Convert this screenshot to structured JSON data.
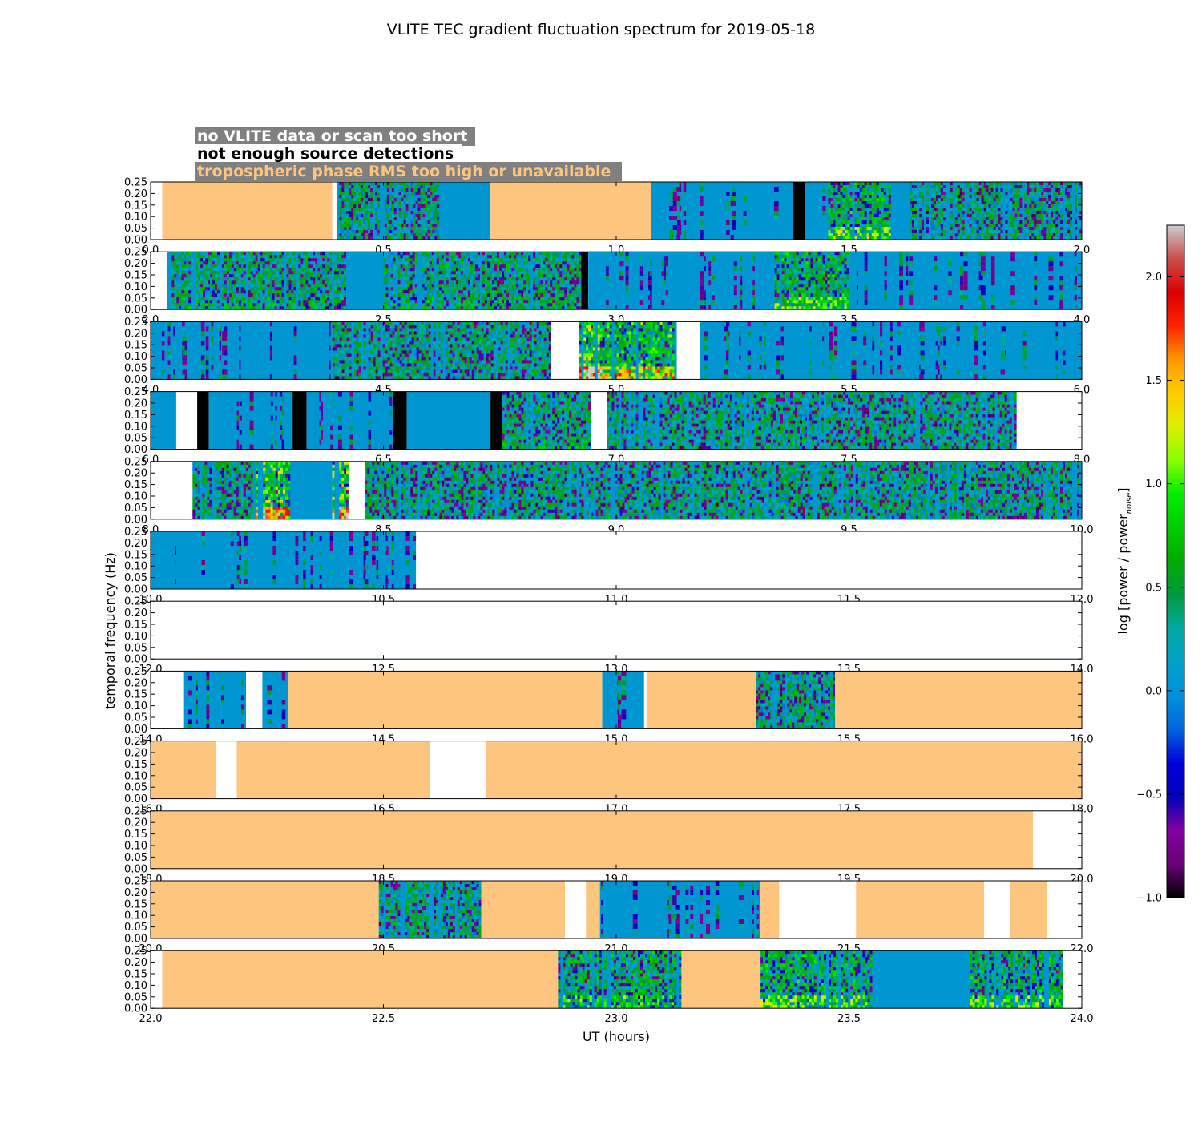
{
  "chart_data": {
    "type": "heatmap",
    "title": "VLITE TEC gradient fluctuation spectrum for 2019-05-18",
    "xlabel": "UT (hours)",
    "ylabel": "temporal frequency (Hz)",
    "ylim": [
      0,
      0.25
    ],
    "yticks": [
      "0.00",
      "0.05",
      "0.10",
      "0.15",
      "0.20",
      "0.25"
    ],
    "legend": {
      "position": "top-left",
      "entries": [
        {
          "label": "no VLITE data or scan too short",
          "color": "#ffffff"
        },
        {
          "label": "not enough source detections",
          "color": "#000000"
        },
        {
          "label": "tropospheric phase RMS too high or unavailable",
          "color": "#fec57f"
        }
      ]
    },
    "colorbar": {
      "label": "log [power / power",
      "label_sub": "noise",
      "label_end": "]",
      "min": -1.0,
      "max": 2.25,
      "ticks": [
        "2.0",
        "1.5",
        "1.0",
        "0.5",
        "0.0",
        "−0.5",
        "−1.0"
      ],
      "tick_values": [
        2.0,
        1.5,
        1.0,
        0.5,
        0.0,
        -0.5,
        -1.0
      ],
      "colormap": "nipy_spectral"
    },
    "colors": {
      "troposphere": "#fec57f",
      "no_detections": "#000000",
      "no_data": "#ffffff",
      "quiet": "#0096d2"
    },
    "panels": [
      {
        "xlim": [
          0.0,
          2.0
        ],
        "xticks": [
          "0.0",
          "0.5",
          "1.0",
          "1.5",
          "2.0"
        ],
        "segments": [
          {
            "start": 0.025,
            "end": 0.39,
            "kind": "troposphere"
          },
          {
            "start": 0.4,
            "end": 0.62,
            "kind": "spectrum",
            "activity": 0.35
          },
          {
            "start": 0.62,
            "end": 0.73,
            "kind": "quiet"
          },
          {
            "start": 0.73,
            "end": 1.075,
            "kind": "troposphere"
          },
          {
            "start": 1.075,
            "end": 1.38,
            "kind": "quiet-patchy"
          },
          {
            "start": 1.38,
            "end": 1.405,
            "kind": "no_detections"
          },
          {
            "start": 1.405,
            "end": 1.45,
            "kind": "quiet-patchy"
          },
          {
            "start": 1.45,
            "end": 1.59,
            "kind": "spectrum",
            "activity": 0.55
          },
          {
            "start": 1.59,
            "end": 1.63,
            "kind": "quiet"
          },
          {
            "start": 1.63,
            "end": 2.0,
            "kind": "spectrum",
            "activity": 0.35
          }
        ]
      },
      {
        "xlim": [
          2.0,
          4.0
        ],
        "xticks": [
          "2.0",
          "2.5",
          "3.0",
          "3.5",
          "4.0"
        ],
        "segments": [
          {
            "start": 2.035,
            "end": 2.42,
            "kind": "spectrum",
            "activity": 0.4
          },
          {
            "start": 2.42,
            "end": 2.5,
            "kind": "quiet"
          },
          {
            "start": 2.5,
            "end": 2.925,
            "kind": "spectrum",
            "activity": 0.4
          },
          {
            "start": 2.925,
            "end": 2.94,
            "kind": "no_detections"
          },
          {
            "start": 2.94,
            "end": 3.34,
            "kind": "quiet-patchy"
          },
          {
            "start": 3.34,
            "end": 3.5,
            "kind": "spectrum",
            "activity": 0.55
          },
          {
            "start": 3.5,
            "end": 4.0,
            "kind": "quiet-patchy"
          }
        ]
      },
      {
        "xlim": [
          4.0,
          6.0
        ],
        "xticks": [
          "4.0",
          "4.5",
          "5.0",
          "5.5",
          "6.0"
        ],
        "segments": [
          {
            "start": 4.0,
            "end": 4.39,
            "kind": "quiet-patchy"
          },
          {
            "start": 4.39,
            "end": 4.86,
            "kind": "spectrum",
            "activity": 0.35
          },
          {
            "start": 4.86,
            "end": 4.92,
            "kind": "no_data"
          },
          {
            "start": 4.92,
            "end": 4.97,
            "kind": "spectrum",
            "activity": 1.0
          },
          {
            "start": 4.97,
            "end": 5.13,
            "kind": "spectrum",
            "activity": 0.7
          },
          {
            "start": 5.13,
            "end": 5.18,
            "kind": "no_data"
          },
          {
            "start": 5.18,
            "end": 6.0,
            "kind": "quiet-patchy"
          }
        ]
      },
      {
        "xlim": [
          6.0,
          8.0
        ],
        "xticks": [
          "6.0",
          "6.5",
          "7.0",
          "7.5",
          "8.0"
        ],
        "segments": [
          {
            "start": 6.0,
            "end": 6.055,
            "kind": "quiet"
          },
          {
            "start": 6.055,
            "end": 6.1,
            "kind": "no_data"
          },
          {
            "start": 6.1,
            "end": 6.125,
            "kind": "no_detections"
          },
          {
            "start": 6.125,
            "end": 6.305,
            "kind": "quiet-patchy"
          },
          {
            "start": 6.305,
            "end": 6.335,
            "kind": "no_detections"
          },
          {
            "start": 6.335,
            "end": 6.52,
            "kind": "quiet-patchy"
          },
          {
            "start": 6.52,
            "end": 6.55,
            "kind": "no_detections"
          },
          {
            "start": 6.55,
            "end": 6.73,
            "kind": "quiet"
          },
          {
            "start": 6.73,
            "end": 6.755,
            "kind": "no_detections"
          },
          {
            "start": 6.755,
            "end": 6.945,
            "kind": "spectrum",
            "activity": 0.4
          },
          {
            "start": 6.945,
            "end": 6.98,
            "kind": "no_data"
          },
          {
            "start": 6.98,
            "end": 7.86,
            "kind": "spectrum",
            "activity": 0.35
          },
          {
            "start": 7.86,
            "end": 8.0,
            "kind": "no_data"
          }
        ]
      },
      {
        "xlim": [
          8.0,
          10.0
        ],
        "xticks": [
          "8.0",
          "8.5",
          "9.0",
          "9.5",
          "10.0"
        ],
        "segments": [
          {
            "start": 8.0,
            "end": 8.09,
            "kind": "no_data"
          },
          {
            "start": 8.09,
            "end": 8.22,
            "kind": "spectrum",
            "activity": 0.35
          },
          {
            "start": 8.22,
            "end": 8.3,
            "kind": "spectrum",
            "activity": 0.85
          },
          {
            "start": 8.3,
            "end": 8.39,
            "kind": "quiet"
          },
          {
            "start": 8.39,
            "end": 8.425,
            "kind": "spectrum",
            "activity": 0.9
          },
          {
            "start": 8.425,
            "end": 8.43,
            "kind": "no_data"
          },
          {
            "start": 8.43,
            "end": 8.46,
            "kind": "no_data"
          },
          {
            "start": 8.46,
            "end": 10.0,
            "kind": "spectrum",
            "activity": 0.35
          }
        ]
      },
      {
        "xlim": [
          10.0,
          12.0
        ],
        "xticks": [
          "10.0",
          "10.5",
          "11.0",
          "11.5",
          "12.0"
        ],
        "segments": [
          {
            "start": 10.0,
            "end": 10.57,
            "kind": "quiet-patchy"
          },
          {
            "start": 10.57,
            "end": 12.0,
            "kind": "no_data"
          }
        ]
      },
      {
        "xlim": [
          12.0,
          14.0
        ],
        "xticks": [
          "12.0",
          "12.5",
          "13.0",
          "13.5",
          "14.0"
        ],
        "segments": [
          {
            "start": 12.0,
            "end": 14.0,
            "kind": "no_data"
          }
        ]
      },
      {
        "xlim": [
          14.0,
          16.0
        ],
        "xticks": [
          "14.0",
          "14.5",
          "15.0",
          "15.5",
          "16.0"
        ],
        "segments": [
          {
            "start": 14.0,
            "end": 14.07,
            "kind": "no_data"
          },
          {
            "start": 14.07,
            "end": 14.205,
            "kind": "quiet-patchy"
          },
          {
            "start": 14.205,
            "end": 14.24,
            "kind": "no_data"
          },
          {
            "start": 14.24,
            "end": 14.295,
            "kind": "quiet-patchy"
          },
          {
            "start": 14.295,
            "end": 14.97,
            "kind": "troposphere"
          },
          {
            "start": 14.97,
            "end": 15.06,
            "kind": "quiet-patchy"
          },
          {
            "start": 15.06,
            "end": 15.065,
            "kind": "no_data"
          },
          {
            "start": 15.065,
            "end": 15.3,
            "kind": "troposphere"
          },
          {
            "start": 15.3,
            "end": 15.47,
            "kind": "spectrum",
            "activity": 0.35
          },
          {
            "start": 15.47,
            "end": 16.0,
            "kind": "troposphere"
          }
        ]
      },
      {
        "xlim": [
          16.0,
          18.0
        ],
        "xticks": [
          "16.0",
          "16.5",
          "17.0",
          "17.5",
          "18.0"
        ],
        "segments": [
          {
            "start": 16.0,
            "end": 16.14,
            "kind": "troposphere"
          },
          {
            "start": 16.14,
            "end": 16.185,
            "kind": "no_data"
          },
          {
            "start": 16.185,
            "end": 16.6,
            "kind": "troposphere"
          },
          {
            "start": 16.6,
            "end": 16.72,
            "kind": "no_data"
          },
          {
            "start": 16.72,
            "end": 18.0,
            "kind": "troposphere"
          }
        ]
      },
      {
        "xlim": [
          18.0,
          20.0
        ],
        "xticks": [
          "18.0",
          "18.5",
          "19.0",
          "19.5",
          "20.0"
        ],
        "segments": [
          {
            "start": 18.0,
            "end": 19.895,
            "kind": "troposphere"
          },
          {
            "start": 19.895,
            "end": 20.0,
            "kind": "no_data"
          }
        ]
      },
      {
        "xlim": [
          20.0,
          22.0
        ],
        "xticks": [
          "20.0",
          "20.5",
          "21.0",
          "21.5",
          "22.0"
        ],
        "segments": [
          {
            "start": 20.0,
            "end": 20.49,
            "kind": "troposphere"
          },
          {
            "start": 20.49,
            "end": 20.71,
            "kind": "spectrum",
            "activity": 0.35
          },
          {
            "start": 20.71,
            "end": 20.89,
            "kind": "troposphere"
          },
          {
            "start": 20.89,
            "end": 20.935,
            "kind": "no_data"
          },
          {
            "start": 20.935,
            "end": 20.965,
            "kind": "troposphere"
          },
          {
            "start": 20.965,
            "end": 21.31,
            "kind": "quiet-patchy"
          },
          {
            "start": 21.31,
            "end": 21.35,
            "kind": "troposphere"
          },
          {
            "start": 21.35,
            "end": 21.515,
            "kind": "no_data"
          },
          {
            "start": 21.515,
            "end": 21.79,
            "kind": "troposphere"
          },
          {
            "start": 21.79,
            "end": 21.845,
            "kind": "no_data"
          },
          {
            "start": 21.845,
            "end": 21.925,
            "kind": "troposphere"
          },
          {
            "start": 21.925,
            "end": 22.0,
            "kind": "no_data"
          }
        ]
      },
      {
        "xlim": [
          22.0,
          24.0
        ],
        "xticks": [
          "22.0",
          "22.5",
          "23.0",
          "23.5",
          "24.0"
        ],
        "segments": [
          {
            "start": 22.0,
            "end": 22.025,
            "kind": "no_data"
          },
          {
            "start": 22.025,
            "end": 22.875,
            "kind": "troposphere"
          },
          {
            "start": 22.875,
            "end": 23.14,
            "kind": "spectrum",
            "activity": 0.5
          },
          {
            "start": 23.14,
            "end": 23.31,
            "kind": "troposphere"
          },
          {
            "start": 23.31,
            "end": 23.55,
            "kind": "spectrum",
            "activity": 0.55
          },
          {
            "start": 23.55,
            "end": 23.76,
            "kind": "quiet"
          },
          {
            "start": 23.76,
            "end": 23.96,
            "kind": "spectrum",
            "activity": 0.55
          },
          {
            "start": 23.96,
            "end": 24.0,
            "kind": "no_data"
          }
        ]
      }
    ]
  }
}
